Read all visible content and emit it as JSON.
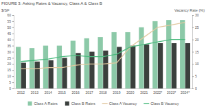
{
  "chart_data": {
    "type": "bar",
    "title": "FIGURE 3: Asking Rates & Vacancy, Class A & Class B",
    "y_label": "$/SF",
    "y2_label": "Vacancy Rate (%)",
    "categories": [
      "2012",
      "2013",
      "2014",
      "2015",
      "2016",
      "2017",
      "2018",
      "2019",
      "2020",
      "2021",
      "2022*",
      "2023*",
      "2024*"
    ],
    "series": [
      {
        "name": "Class A Rates",
        "type": "bar",
        "color": "#8cc9a8",
        "values": [
          34,
          33,
          35,
          35,
          39,
          41,
          42,
          46,
          46,
          50,
          55,
          56,
          56
        ]
      },
      {
        "name": "Class B Rates",
        "type": "bar",
        "color": "#3b403d",
        "values": [
          21,
          22,
          23,
          25,
          29,
          30,
          31,
          34,
          35,
          36,
          37,
          37,
          37
        ]
      },
      {
        "name": "Class A Vacancy",
        "type": "line",
        "axis": "y2",
        "color": "#e2c9a0",
        "values": [
          8,
          8,
          8.5,
          8.5,
          9.5,
          10,
          10,
          10.5,
          17,
          21,
          25,
          26,
          27
        ]
      },
      {
        "name": "Class B Vacancy",
        "type": "line",
        "axis": "y2",
        "color": "#4cbb7f",
        "values": [
          11,
          11.5,
          12,
          13,
          13.5,
          13,
          13,
          14,
          17,
          18,
          19,
          20,
          20
        ]
      }
    ],
    "ylim": [
      0,
      60
    ],
    "yticks": [
      0,
      5,
      10,
      15,
      20,
      25,
      30,
      35,
      40,
      45,
      50,
      55,
      60
    ],
    "y2lim": [
      0,
      30
    ],
    "y2ticks": [
      0,
      5,
      10,
      15,
      20,
      25,
      30
    ],
    "grid": false,
    "legend": "bottom"
  }
}
